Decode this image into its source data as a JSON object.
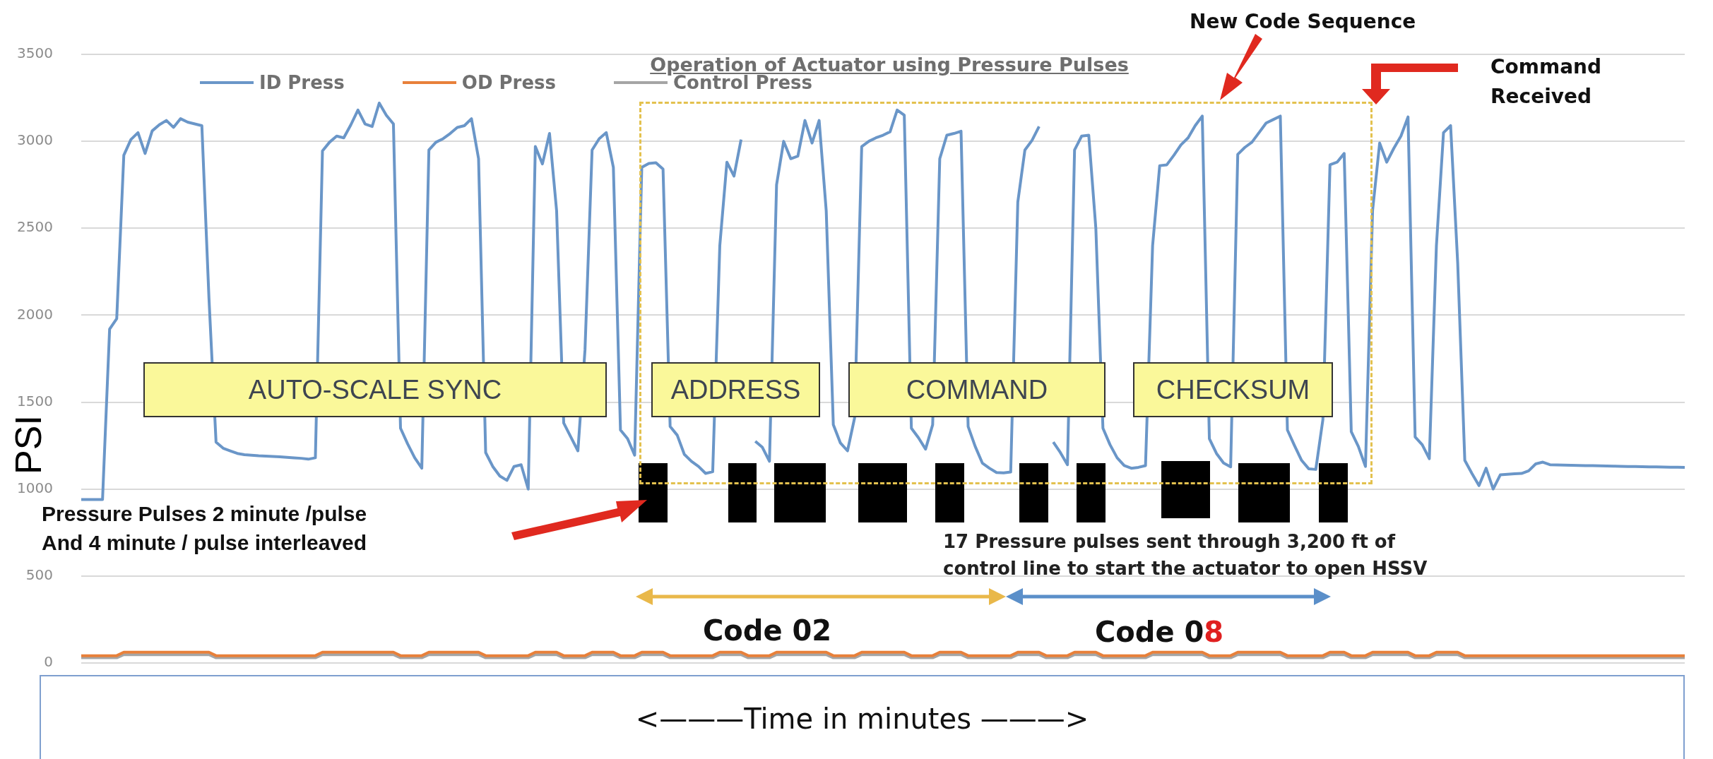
{
  "chart_data": {
    "type": "line",
    "title": "Operation of Actuator using Pressure Pulses",
    "ylabel": "PSI",
    "xlabel": "<———Time in minutes ———>",
    "categories": [
      null,
      null,
      null,
      null,
      null,
      null,
      null,
      null,
      null,
      null,
      null,
      null,
      null,
      null,
      null,
      null,
      null,
      null,
      null,
      null,
      null,
      null,
      null,
      null,
      null,
      null,
      null,
      null,
      null,
      null,
      null,
      null,
      null,
      null,
      null,
      null,
      null,
      null,
      null,
      null,
      null,
      null,
      null,
      null,
      null,
      null,
      null,
      null,
      null,
      null,
      null,
      null,
      null,
      null,
      null,
      null,
      null,
      null,
      null,
      null,
      null,
      null,
      null,
      null,
      null,
      null,
      null,
      null,
      null,
      null,
      null,
      null,
      null,
      null,
      null,
      null,
      null,
      null,
      null,
      null,
      null,
      null,
      null,
      null,
      null,
      null,
      null,
      null,
      null,
      null,
      null,
      null,
      null,
      null,
      null,
      null,
      null,
      null,
      null,
      null,
      null,
      null,
      null,
      null,
      null,
      null,
      null,
      null,
      null,
      null,
      null,
      null,
      null,
      null,
      null,
      null,
      null,
      null,
      null,
      null,
      null,
      null,
      null,
      null,
      null,
      null,
      null,
      null,
      null,
      null,
      null,
      null,
      null,
      null,
      null,
      null,
      null,
      null,
      null,
      null,
      null,
      null,
      null,
      null,
      null,
      null,
      null,
      null,
      null,
      null,
      null,
      null,
      null,
      null,
      null,
      null,
      null,
      null,
      null,
      null,
      null,
      null,
      null,
      null,
      null,
      null,
      null,
      null,
      null,
      null,
      null,
      null,
      null,
      null,
      null,
      null,
      null,
      null,
      null,
      null,
      null,
      null,
      null,
      null,
      null,
      null,
      null,
      null,
      null,
      null,
      null,
      null,
      null,
      null,
      null,
      null,
      null,
      null,
      null,
      null,
      null,
      null,
      null,
      null,
      null,
      null,
      null,
      null,
      null,
      null,
      null,
      null,
      null,
      null,
      null,
      null,
      null,
      null,
      null,
      null,
      null,
      null,
      null,
      null,
      null,
      null,
      null
    ],
    "series": [
      {
        "name": "ID Press",
        "color": "#6a96c8",
        "values": [
          940,
          940,
          940,
          940,
          1920,
          1980,
          2920,
          3010,
          3050,
          2930,
          3060,
          3095,
          3120,
          3080,
          3130,
          3110,
          3100,
          3090,
          2100,
          1270,
          1235,
          1220,
          1205,
          1198,
          1195,
          1192,
          1190,
          1188,
          1186,
          1183,
          1180,
          1177,
          1172,
          1180,
          2945,
          2995,
          3030,
          3020,
          3095,
          3180,
          3100,
          3085,
          3220,
          3150,
          3100,
          1350,
          1260,
          1180,
          1120,
          2950,
          2995,
          3015,
          3045,
          3080,
          3090,
          3130,
          2900,
          1210,
          1130,
          1075,
          1050,
          1130,
          1140,
          1000,
          2970,
          2870,
          3045,
          2600,
          1380,
          1300,
          1220,
          1800,
          2950,
          3015,
          3050,
          2850,
          1340,
          1290,
          1195,
          2850,
          2873,
          2877,
          2840,
          1360,
          1310,
          1200,
          1160,
          1130,
          1090,
          1100,
          2400,
          2880,
          2800,
          3010,
          null,
          1275,
          1240,
          1160,
          2750,
          3000,
          2900,
          2915,
          3120,
          2990,
          3120,
          2600,
          1370,
          1265,
          1220,
          1410,
          2970,
          3000,
          3020,
          3035,
          3055,
          3180,
          3150,
          1350,
          1295,
          1230,
          1370,
          2900,
          3035,
          3045,
          3058,
          1360,
          1245,
          1150,
          1120,
          1095,
          1093,
          1098,
          2650,
          2950,
          3005,
          3085,
          null,
          1270,
          1210,
          1140,
          2950,
          3030,
          3035,
          2500,
          1350,
          1255,
          1180,
          1135,
          1120,
          1125,
          1135,
          2400,
          2860,
          2865,
          2920,
          2980,
          3020,
          3090,
          3145,
          1290,
          1205,
          1150,
          1128,
          2925,
          2965,
          2995,
          3050,
          3105,
          3125,
          3145,
          1340,
          1250,
          1165,
          1117,
          1113,
          1400,
          2865,
          2880,
          2930,
          1330,
          1245,
          1130,
          2600,
          2990,
          2880,
          2960,
          3030,
          3140,
          1300,
          1255,
          1175,
          2400,
          3050,
          3090,
          2300,
          1165,
          1090,
          1020,
          1120,
          1000,
          1082,
          1085,
          1088,
          1090,
          1105,
          1145,
          1155,
          1140,
          1139,
          1138,
          1137,
          1136,
          1135,
          1135,
          1134,
          1133,
          1132,
          1131,
          1130,
          1130,
          1129,
          1128,
          1128,
          1127,
          1126,
          1126,
          1125
        ]
      },
      {
        "name": "OD Press",
        "color": "#e8803a",
        "values": [
          42,
          42,
          42,
          42,
          42,
          42,
          62,
          62,
          62,
          62,
          62,
          62,
          62,
          62,
          62,
          62,
          62,
          62,
          62,
          42,
          42,
          42,
          42,
          42,
          42,
          42,
          42,
          42,
          42,
          42,
          42,
          42,
          42,
          42,
          62,
          62,
          62,
          62,
          62,
          62,
          62,
          62,
          62,
          62,
          62,
          42,
          42,
          42,
          42,
          62,
          62,
          62,
          62,
          62,
          62,
          62,
          62,
          42,
          42,
          42,
          42,
          42,
          42,
          42,
          62,
          62,
          62,
          62,
          42,
          42,
          42,
          42,
          62,
          62,
          62,
          62,
          42,
          42,
          42,
          62,
          62,
          62,
          62,
          42,
          42,
          42,
          42,
          42,
          42,
          42,
          62,
          62,
          62,
          62,
          42,
          42,
          42,
          42,
          62,
          62,
          62,
          62,
          62,
          62,
          62,
          62,
          42,
          42,
          42,
          42,
          62,
          62,
          62,
          62,
          62,
          62,
          62,
          42,
          42,
          42,
          42,
          62,
          62,
          62,
          62,
          42,
          42,
          42,
          42,
          42,
          42,
          42,
          62,
          62,
          62,
          62,
          42,
          42,
          42,
          42,
          62,
          62,
          62,
          62,
          42,
          42,
          42,
          42,
          42,
          42,
          42,
          62,
          62,
          62,
          62,
          62,
          62,
          62,
          62,
          42,
          42,
          42,
          42,
          62,
          62,
          62,
          62,
          62,
          62,
          62,
          42,
          42,
          42,
          42,
          42,
          42,
          62,
          62,
          62,
          42,
          42,
          42,
          62,
          62,
          62,
          62,
          62,
          62,
          42,
          42,
          42,
          62,
          62,
          62,
          62,
          42,
          42,
          42,
          42,
          42,
          42,
          42,
          42,
          42,
          42,
          42,
          42,
          42,
          42,
          42,
          42,
          42,
          42,
          42,
          42,
          42,
          42,
          42,
          42,
          42,
          42,
          42,
          42,
          42,
          42,
          42,
          42
        ]
      },
      {
        "name": "Control Press",
        "color": "#a5a5a5",
        "values": [
          30,
          30,
          30,
          30,
          30,
          30,
          48,
          48,
          48,
          48,
          48,
          48,
          48,
          48,
          48,
          48,
          48,
          48,
          48,
          30,
          30,
          30,
          30,
          30,
          30,
          30,
          30,
          30,
          30,
          30,
          30,
          30,
          30,
          30,
          48,
          48,
          48,
          48,
          48,
          48,
          48,
          48,
          48,
          48,
          48,
          30,
          30,
          30,
          30,
          48,
          48,
          48,
          48,
          48,
          48,
          48,
          48,
          30,
          30,
          30,
          30,
          30,
          30,
          30,
          48,
          48,
          48,
          48,
          30,
          30,
          30,
          30,
          48,
          48,
          48,
          48,
          30,
          30,
          30,
          48,
          48,
          48,
          48,
          30,
          30,
          30,
          30,
          30,
          30,
          30,
          48,
          48,
          48,
          48,
          30,
          30,
          30,
          30,
          48,
          48,
          48,
          48,
          48,
          48,
          48,
          48,
          30,
          30,
          30,
          30,
          48,
          48,
          48,
          48,
          48,
          48,
          48,
          30,
          30,
          30,
          30,
          48,
          48,
          48,
          48,
          30,
          30,
          30,
          30,
          30,
          30,
          30,
          48,
          48,
          48,
          48,
          30,
          30,
          30,
          30,
          48,
          48,
          48,
          48,
          30,
          30,
          30,
          30,
          30,
          30,
          30,
          48,
          48,
          48,
          48,
          48,
          48,
          48,
          48,
          30,
          30,
          30,
          30,
          48,
          48,
          48,
          48,
          48,
          48,
          48,
          30,
          30,
          30,
          30,
          30,
          30,
          48,
          48,
          48,
          30,
          30,
          30,
          48,
          48,
          48,
          48,
          48,
          48,
          30,
          30,
          30,
          48,
          48,
          48,
          48,
          30,
          30,
          30,
          30,
          30,
          30,
          30,
          30,
          30,
          30,
          30,
          30,
          30,
          30,
          30,
          30,
          30,
          30,
          30,
          30,
          30,
          30,
          30,
          30,
          30,
          30,
          30,
          30,
          30,
          30,
          30,
          30
        ]
      }
    ],
    "ylim": [
      0,
      3500
    ],
    "yticks": [
      0,
      500,
      1000,
      1500,
      2000,
      2500,
      3000,
      3500
    ],
    "grid": "y",
    "legend": "top left",
    "tick_labels": "y",
    "marker": "none",
    "line_style": "solid",
    "annotations": [
      "AUTO-SCALE SYNC",
      "ADDRESS",
      "COMMAND",
      "CHECKSUM",
      "New Code Sequence",
      "Command Received",
      "Pressure Pulses 2 minute /pulse",
      "And 4 minute / pulse interleaved",
      "17 Pressure pulses sent through 3,200 ft of",
      "control line to start the actuator to open HSSV",
      "Code 02",
      "Code 08"
    ]
  }
}
